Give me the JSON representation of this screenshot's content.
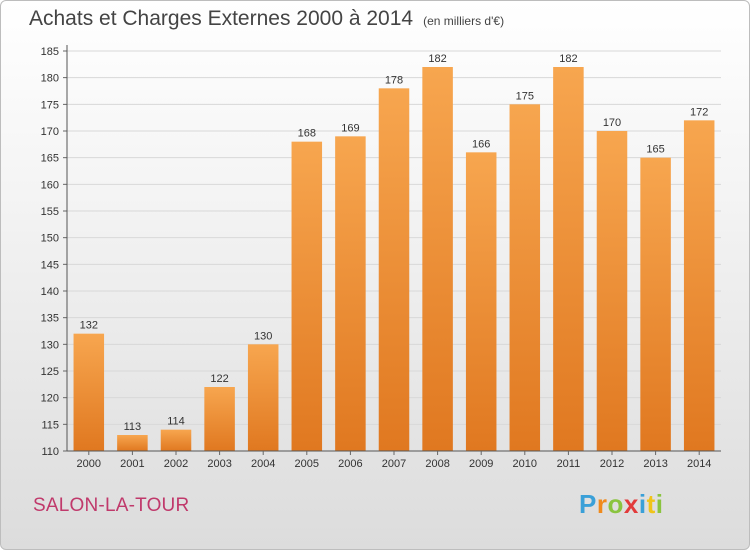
{
  "chart_data": {
    "type": "bar",
    "title": "Achats et Charges Externes 2000 à 2014",
    "subtitle": "(en milliers d'€)",
    "categories": [
      "2000",
      "2001",
      "2002",
      "2003",
      "2004",
      "2005",
      "2006",
      "2007",
      "2008",
      "2009",
      "2010",
      "2011",
      "2012",
      "2013",
      "2014"
    ],
    "values": [
      132,
      113,
      114,
      122,
      130,
      168,
      169,
      178,
      182,
      166,
      175,
      182,
      170,
      165,
      172
    ],
    "ylim": [
      110,
      185
    ],
    "yticks": [
      110,
      115,
      120,
      125,
      130,
      135,
      140,
      145,
      150,
      155,
      160,
      165,
      170,
      175,
      180,
      185
    ],
    "grid": true,
    "bar_color_light": "#f7a64f",
    "bar_color_dark": "#e07820"
  },
  "footer": {
    "commune": "SALON-LA-TOUR",
    "commune_color": "#c0396b",
    "brand_letters": [
      "P",
      "r",
      "o",
      "x",
      "i",
      "t",
      "i"
    ],
    "brand_colors": [
      "#3aa0d8",
      "#f08a1c",
      "#8ac43f",
      "#e23b3b",
      "#3aa0d8",
      "#f0c419",
      "#8ac43f"
    ]
  }
}
